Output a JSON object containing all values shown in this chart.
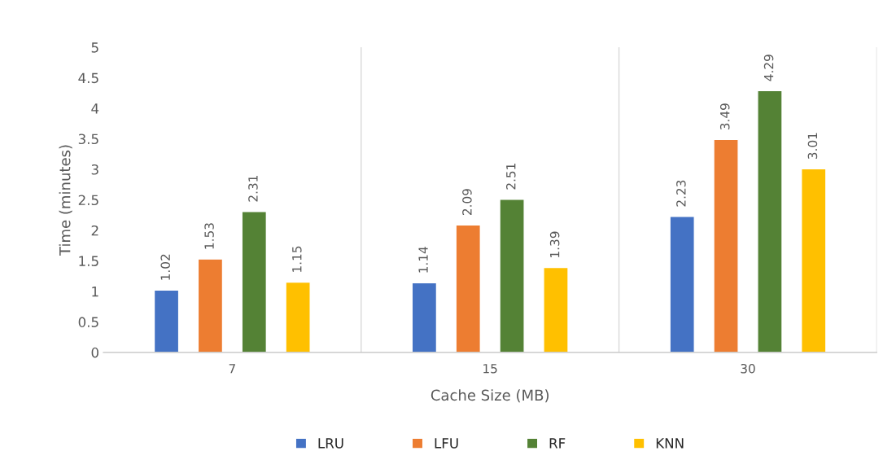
{
  "chart_data": {
    "type": "bar",
    "xlabel": "Cache Size (MB)",
    "ylabel": "Time (minutes)",
    "categories": [
      "7",
      "15",
      "30"
    ],
    "series": [
      {
        "name": "LRU",
        "color": "#4472c4",
        "values": [
          1.02,
          1.14,
          2.23
        ]
      },
      {
        "name": "LFU",
        "color": "#ed7d31",
        "values": [
          1.53,
          2.09,
          3.49
        ]
      },
      {
        "name": "RF",
        "color": "#548235",
        "values": [
          2.31,
          2.51,
          4.29
        ]
      },
      {
        "name": "KNN",
        "color": "#ffc000",
        "values": [
          1.15,
          1.39,
          3.01
        ]
      }
    ],
    "ylim": [
      0,
      5
    ],
    "yticks": [
      0,
      0.5,
      1,
      1.5,
      2,
      2.5,
      3,
      3.5,
      4,
      4.5,
      5
    ],
    "grid": "x",
    "legend": "bottom",
    "data_labels": true
  }
}
